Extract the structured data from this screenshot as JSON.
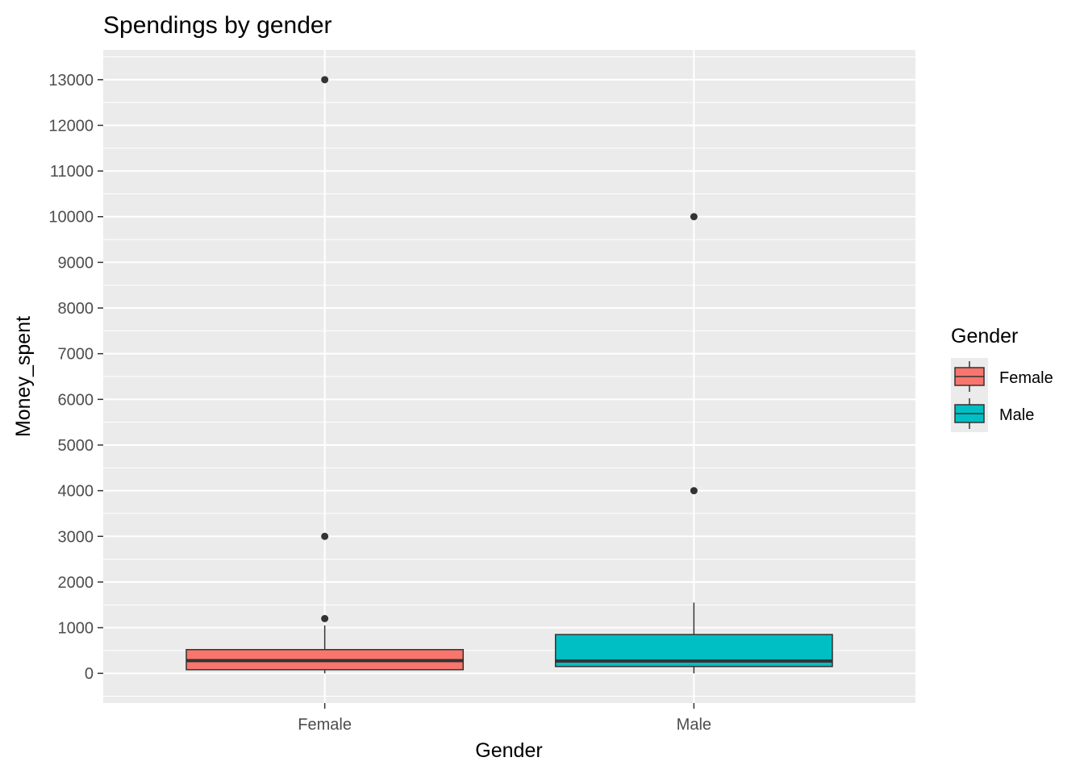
{
  "chart_data": {
    "type": "boxplot",
    "title": "Spendings by gender",
    "xlabel": "Gender",
    "ylabel": "Money_spent",
    "ylim": [
      -650,
      13650
    ],
    "yticks": [
      0,
      1000,
      2000,
      3000,
      4000,
      5000,
      6000,
      7000,
      8000,
      9000,
      10000,
      11000,
      12000,
      13000
    ],
    "categories": [
      "Female",
      "Male"
    ],
    "grid": true,
    "legend": {
      "title": "Gender",
      "position": "right",
      "entries": [
        "Female",
        "Male"
      ]
    },
    "series": [
      {
        "category": "Female",
        "color": "#F8766D",
        "whisker_low": 0,
        "q1": 80,
        "median": 280,
        "q3": 520,
        "whisker_high": 1050,
        "outliers": [
          1200,
          3000,
          13000
        ]
      },
      {
        "category": "Male",
        "color": "#00BFC4",
        "whisker_low": 0,
        "q1": 150,
        "median": 270,
        "q3": 850,
        "whisker_high": 1550,
        "outliers": [
          4000,
          10000
        ]
      }
    ]
  }
}
